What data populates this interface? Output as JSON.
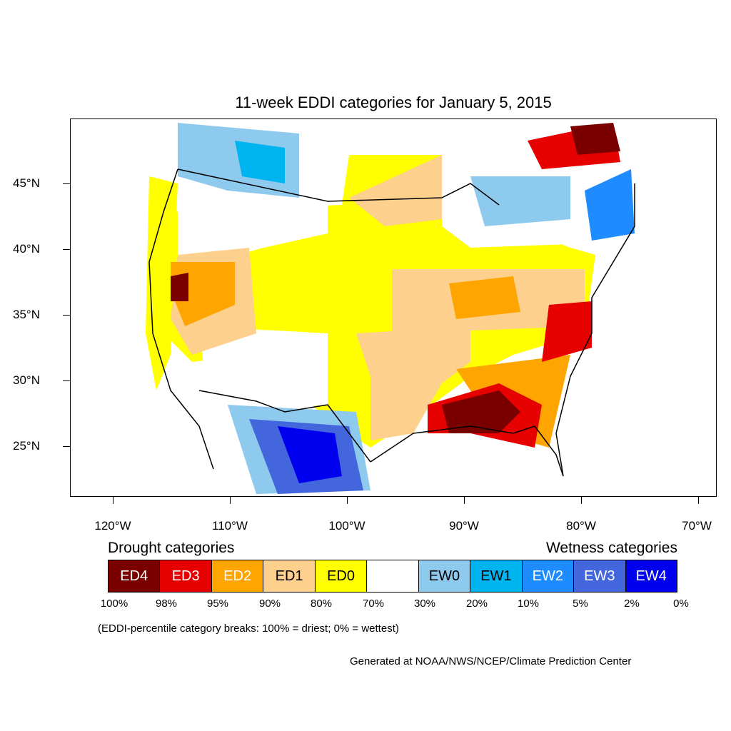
{
  "title": "11-week EDDI categories for January 5, 2015",
  "lat_labels": [
    "45°N",
    "40°N",
    "35°N",
    "30°N",
    "25°N"
  ],
  "lon_labels": [
    "120°W",
    "110°W",
    "100°W",
    "90°W",
    "80°W",
    "70°W"
  ],
  "legend": {
    "drought_heading": "Drought categories",
    "wetness_heading": "Wetness categories",
    "categories": [
      {
        "label": "ED4",
        "color": "#7a0000",
        "text_color": "#ffffff"
      },
      {
        "label": "ED3",
        "color": "#e60000",
        "text_color": "#ffffff"
      },
      {
        "label": "ED2",
        "color": "#ffa500",
        "text_color": "#ffffff"
      },
      {
        "label": "ED1",
        "color": "#fdd08e",
        "text_color": "#000000"
      },
      {
        "label": "ED0",
        "color": "#ffff00",
        "text_color": "#000000"
      },
      {
        "label": "",
        "color": "#ffffff",
        "text_color": "#000000"
      },
      {
        "label": "EW0",
        "color": "#8ec9ee",
        "text_color": "#000000"
      },
      {
        "label": "EW1",
        "color": "#00b4f0",
        "text_color": "#000000"
      },
      {
        "label": "EW2",
        "color": "#1e8cff",
        "text_color": "#ffffff"
      },
      {
        "label": "EW3",
        "color": "#4466dd",
        "text_color": "#ffffff"
      },
      {
        "label": "EW4",
        "color": "#0000ee",
        "text_color": "#ffffff"
      }
    ],
    "percentiles": [
      "100%",
      "98%",
      "95%",
      "90%",
      "80%",
      "70%",
      "30%",
      "20%",
      "10%",
      "5%",
      "2%",
      "0%"
    ]
  },
  "note": "(EDDI-percentile category breaks: 100% = driest; 0% = wettest)",
  "credit": "Generated at NOAA/NWS/NCEP/Climate Prediction Center"
}
